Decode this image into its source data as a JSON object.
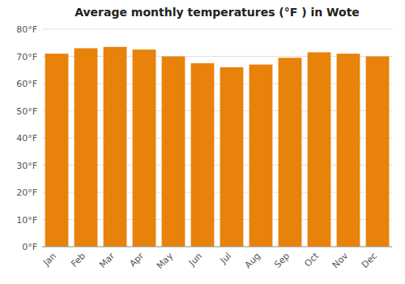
{
  "chart_data": {
    "type": "bar",
    "title": "Average monthly temperatures (°F ) in Wote",
    "categories": [
      "Jan",
      "Feb",
      "Mar",
      "Apr",
      "May",
      "Jun",
      "Jul",
      "Aug",
      "Sep",
      "Oct",
      "Nov",
      "Dec"
    ],
    "values": [
      71.0,
      73.0,
      73.5,
      72.5,
      70.0,
      67.5,
      66.0,
      67.0,
      69.5,
      71.5,
      71.0,
      70.0
    ],
    "color": "#E8820A",
    "ylim": [
      0,
      80
    ],
    "yticks": [
      {
        "value": 0,
        "label": "0°F"
      },
      {
        "value": 10,
        "label": "10°F"
      },
      {
        "value": 20,
        "label": "20°F"
      },
      {
        "value": 30,
        "label": "30°F"
      },
      {
        "value": 40,
        "label": "40°F"
      },
      {
        "value": 50,
        "label": "50°F"
      },
      {
        "value": 60,
        "label": "60°F"
      },
      {
        "value": 70,
        "label": "70°F"
      },
      {
        "value": 80,
        "label": "80°F"
      }
    ],
    "grid": true
  }
}
